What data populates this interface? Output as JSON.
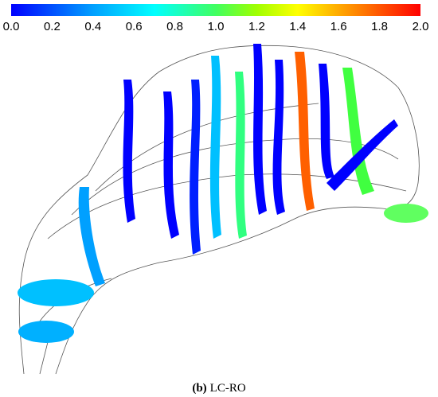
{
  "colorbar": {
    "ticks": [
      "0.0",
      "0.2",
      "0.4",
      "0.6",
      "0.8",
      "1.0",
      "1.2",
      "1.4",
      "1.6",
      "1.8",
      "2.0"
    ]
  },
  "caption": {
    "label": "(b)",
    "text": "LC-RO"
  }
}
